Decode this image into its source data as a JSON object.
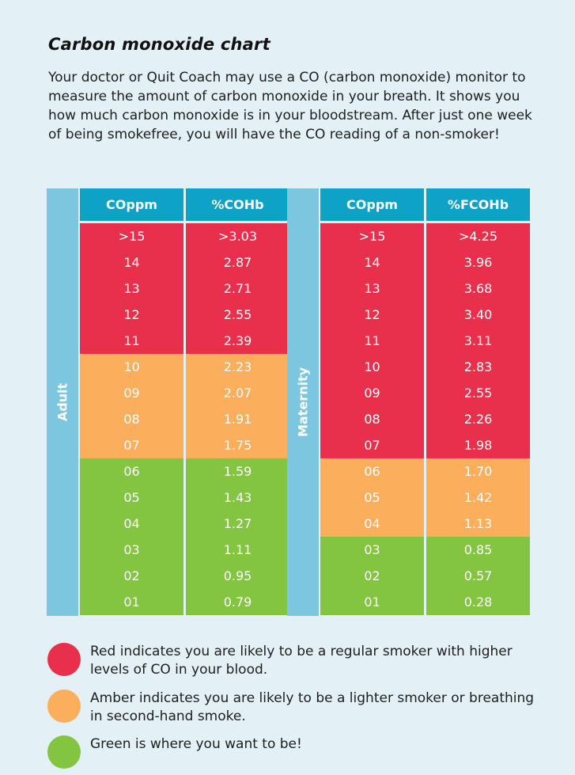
{
  "title": "Carbon monoxide chart",
  "intro": "Your doctor or Quit Coach may use a CO (carbon monoxide) monitor to measure the amount of carbon monoxide in your breath. It shows you how much carbon monoxide is in your bloodstream. After just one week of being smokefree, you will have the CO reading of a non-smoker!",
  "colors": {
    "red": "#e8304d",
    "amber": "#fbaf5d",
    "green": "#83c441",
    "header": "#0ea2c7",
    "side": "#7cc6df"
  },
  "adult": {
    "label": "Adult",
    "headers": [
      "COppm",
      "%COHb"
    ],
    "rows": [
      {
        "ppm": ">15",
        "val": ">3.03",
        "level": "red"
      },
      {
        "ppm": "14",
        "val": "2.87",
        "level": "red"
      },
      {
        "ppm": "13",
        "val": "2.71",
        "level": "red"
      },
      {
        "ppm": "12",
        "val": "2.55",
        "level": "red"
      },
      {
        "ppm": "11",
        "val": "2.39",
        "level": "red"
      },
      {
        "ppm": "10",
        "val": "2.23",
        "level": "amber"
      },
      {
        "ppm": "09",
        "val": "2.07",
        "level": "amber"
      },
      {
        "ppm": "08",
        "val": "1.91",
        "level": "amber"
      },
      {
        "ppm": "07",
        "val": "1.75",
        "level": "amber"
      },
      {
        "ppm": "06",
        "val": "1.59",
        "level": "green"
      },
      {
        "ppm": "05",
        "val": "1.43",
        "level": "green"
      },
      {
        "ppm": "04",
        "val": "1.27",
        "level": "green"
      },
      {
        "ppm": "03",
        "val": "1.11",
        "level": "green"
      },
      {
        "ppm": "02",
        "val": "0.95",
        "level": "green"
      },
      {
        "ppm": "01",
        "val": "0.79",
        "level": "green"
      }
    ]
  },
  "maternity": {
    "label": "Maternity",
    "headers": [
      "COppm",
      "%FCOHb"
    ],
    "rows": [
      {
        "ppm": ">15",
        "val": ">4.25",
        "level": "red"
      },
      {
        "ppm": "14",
        "val": "3.96",
        "level": "red"
      },
      {
        "ppm": "13",
        "val": "3.68",
        "level": "red"
      },
      {
        "ppm": "12",
        "val": "3.40",
        "level": "red"
      },
      {
        "ppm": "11",
        "val": "3.11",
        "level": "red"
      },
      {
        "ppm": "10",
        "val": "2.83",
        "level": "red"
      },
      {
        "ppm": "09",
        "val": "2.55",
        "level": "red"
      },
      {
        "ppm": "08",
        "val": "2.26",
        "level": "red"
      },
      {
        "ppm": "07",
        "val": "1.98",
        "level": "red"
      },
      {
        "ppm": "06",
        "val": "1.70",
        "level": "amber"
      },
      {
        "ppm": "05",
        "val": "1.42",
        "level": "amber"
      },
      {
        "ppm": "04",
        "val": "1.13",
        "level": "amber"
      },
      {
        "ppm": "03",
        "val": "0.85",
        "level": "green"
      },
      {
        "ppm": "02",
        "val": "0.57",
        "level": "green"
      },
      {
        "ppm": "01",
        "val": "0.28",
        "level": "green"
      }
    ]
  },
  "legend": [
    {
      "level": "red",
      "text": "Red indicates you are likely to be a regular smoker with higher levels of CO in your blood."
    },
    {
      "level": "amber",
      "text": "Amber indicates you are likely to be a lighter smoker or breathing in second-hand smoke."
    },
    {
      "level": "green",
      "text": "Green is where you want to be!"
    }
  ]
}
